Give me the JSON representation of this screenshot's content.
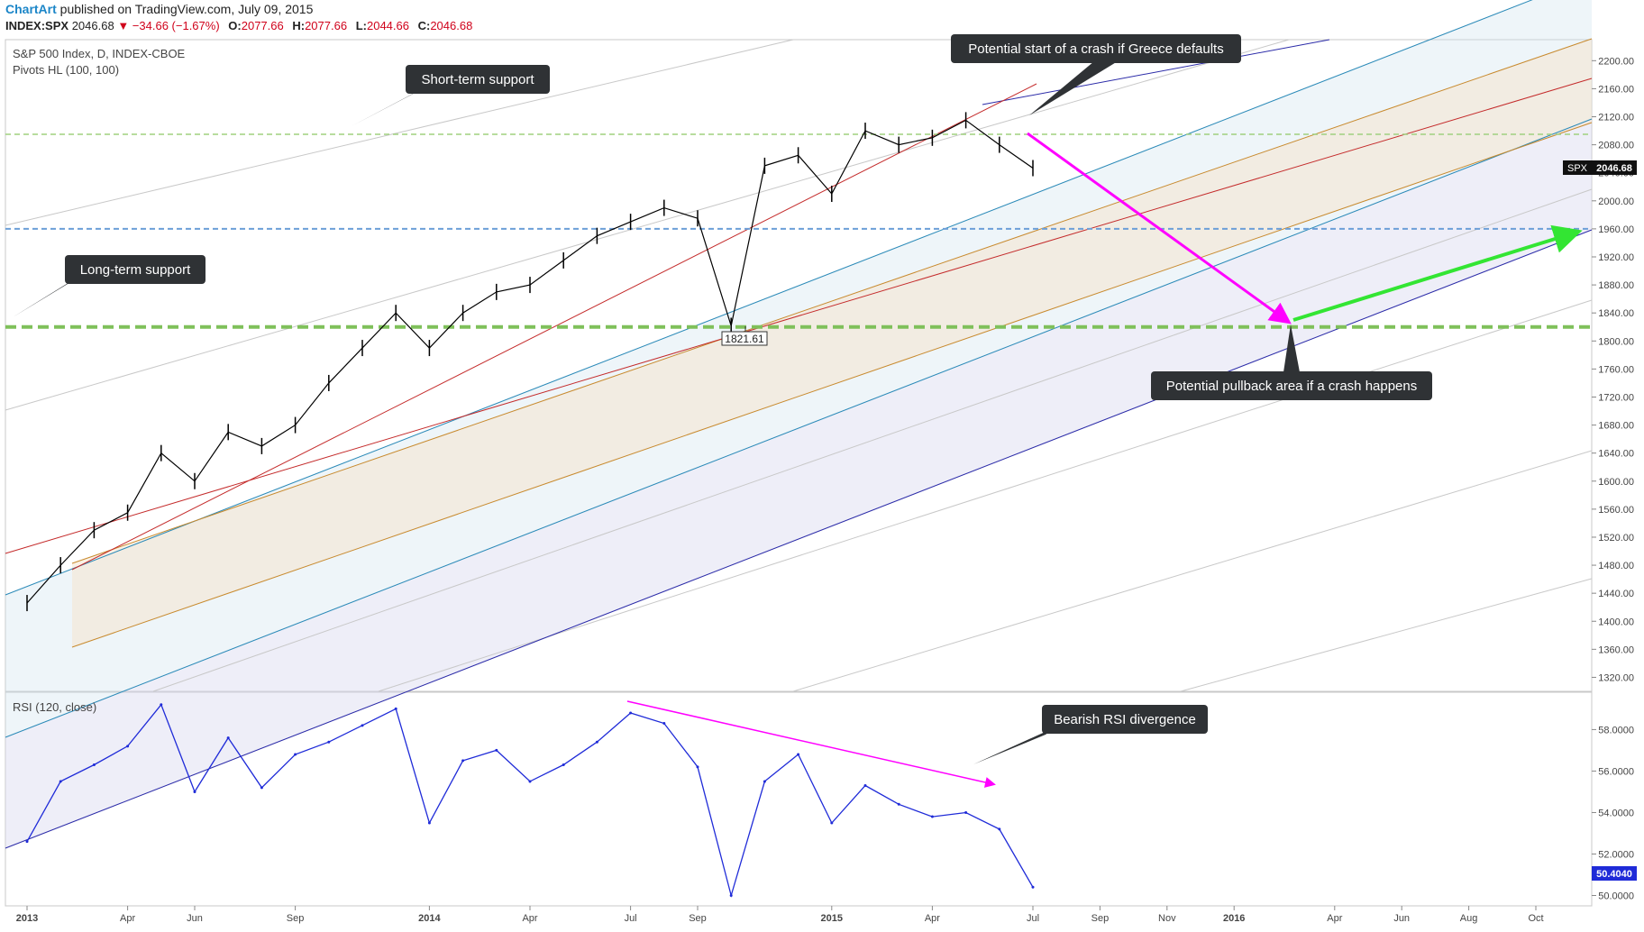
{
  "header": {
    "brand": "ChartArt",
    "published": "published on TradingView.com, July 09, 2015",
    "symbol": "INDEX:SPX",
    "last": "2046.68",
    "change": "▼ −34.66 (−1.67%)",
    "o_label": "O:",
    "o_value": "2077.66",
    "h_label": "H:",
    "h_value": "2077.66",
    "l_label": "L:",
    "l_value": "2044.66",
    "c_label": "C:",
    "c_value": "2046.68"
  },
  "legend": {
    "main_title": "S&P 500 Index, D, INDEX-CBOE",
    "indicator": "Pivots HL (100, 100)",
    "rsi": "RSI (120, close)"
  },
  "annotations": {
    "short_term": "Short-term support",
    "long_term": "Long-term support",
    "crash_start": "Potential start of a crash if Greece defaults",
    "pullback": "Potential pullback area if a crash happens",
    "rsi_div": "Bearish RSI divergence",
    "low_label": "1821.61",
    "price_tag_sym": "SPX",
    "price_tag_val": "2046.68",
    "rsi_tag_val": "50.4040"
  },
  "colors": {
    "candles": "#000000",
    "rsi_line": "#1f2bd8",
    "magenta": "#ff00ff",
    "green_arrow": "#33e533",
    "support_green": "#7fc05a",
    "support_blue": "#6c9fd8",
    "channel_red": "#c42b2b",
    "channel_orange": "#c88a2e",
    "channel_teal": "#2b8ab8",
    "channel_navy": "#2b2ba8"
  },
  "chart_data": [
    {
      "type": "line",
      "title": "S&P 500 Index, D, INDEX-CBOE",
      "ylim": [
        1300,
        2230
      ],
      "y_ticks": [
        2200,
        2160,
        2120,
        2080,
        2040,
        2000,
        1960,
        1920,
        1880,
        1840,
        1800,
        1760,
        1720,
        1680,
        1640,
        1600,
        1560,
        1520,
        1480,
        1440,
        1400,
        1360,
        1320
      ],
      "x_ticks": [
        "2013",
        "Apr",
        "Jun",
        "Sep",
        "2014",
        "Apr",
        "Jul",
        "Sep",
        "2015",
        "Apr",
        "Jul",
        "Sep",
        "Nov",
        "2016",
        "Apr",
        "Jun",
        "Aug",
        "Oct"
      ],
      "series": [
        {
          "x": [
            "2013-01",
            "2013-02",
            "2013-03",
            "2013-04",
            "2013-05",
            "2013-06",
            "2013-07",
            "2013-08",
            "2013-09",
            "2013-10",
            "2013-11",
            "2013-12",
            "2014-01",
            "2014-02",
            "2014-03",
            "2014-04",
            "2014-05",
            "2014-06",
            "2014-07",
            "2014-08",
            "2014-09",
            "2014-10",
            "2014-11",
            "2014-12",
            "2015-01",
            "2015-02",
            "2015-03",
            "2015-04",
            "2015-05",
            "2015-06",
            "2015-07"
          ],
          "values": [
            1426,
            1480,
            1530,
            1555,
            1640,
            1600,
            1670,
            1650,
            1680,
            1740,
            1790,
            1840,
            1790,
            1840,
            1870,
            1880,
            1915,
            1950,
            1970,
            1990,
            1975,
            1821.61,
            2050,
            2065,
            2010,
            2100,
            2080,
            2090,
            2115,
            2080,
            2046.68
          ]
        }
      ],
      "levels": {
        "short_term_support": 2095,
        "blue_support": 1960,
        "long_term_support": 1820
      },
      "last_close": 2046.68,
      "annotated_low": 1821.61
    },
    {
      "type": "line",
      "title": "RSI (120, close)",
      "ylim": [
        49.5,
        59.8
      ],
      "y_ticks": [
        58.0,
        56.0,
        54.0,
        52.0,
        50.0
      ],
      "series": [
        {
          "x": [
            "2013-01",
            "2013-02",
            "2013-03",
            "2013-04",
            "2013-05",
            "2013-06",
            "2013-07",
            "2013-08",
            "2013-09",
            "2013-10",
            "2013-11",
            "2013-12",
            "2014-01",
            "2014-02",
            "2014-03",
            "2014-04",
            "2014-05",
            "2014-06",
            "2014-07",
            "2014-08",
            "2014-09",
            "2014-10",
            "2014-11",
            "2014-12",
            "2015-01",
            "2015-02",
            "2015-03",
            "2015-04",
            "2015-05",
            "2015-06",
            "2015-07"
          ],
          "values": [
            52.6,
            55.5,
            56.3,
            57.2,
            59.2,
            55.0,
            57.6,
            55.2,
            56.8,
            57.4,
            58.2,
            59.0,
            53.5,
            56.5,
            57.0,
            55.5,
            56.3,
            57.4,
            58.8,
            58.3,
            56.2,
            50.0,
            55.5,
            56.8,
            53.5,
            55.3,
            54.4,
            53.8,
            54.0,
            53.2,
            50.4
          ]
        }
      ],
      "last_value": 50.404
    }
  ]
}
